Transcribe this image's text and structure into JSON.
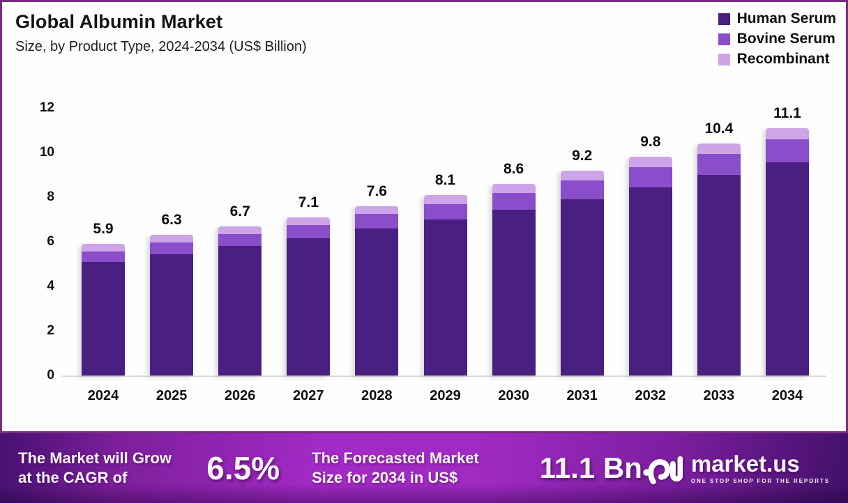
{
  "header": {
    "title": "Global Albumin Market",
    "subtitle": "Size, by Product Type, 2024-2034 (US$ Billion)"
  },
  "legend": [
    {
      "label": "Human Serum",
      "color": "#4a1f82"
    },
    {
      "label": "Bovine Serum",
      "color": "#8a4ecb"
    },
    {
      "label": "Recombinant",
      "color": "#cda4e8"
    }
  ],
  "chart_data": {
    "type": "bar",
    "stacked": true,
    "title": "Global Albumin Market",
    "subtitle": "Size, by Product Type, 2024-2034 (US$ Billion)",
    "xlabel": "",
    "ylabel": "",
    "ylim": [
      0,
      12
    ],
    "yticks": [
      0,
      2,
      4,
      6,
      8,
      10,
      12
    ],
    "grid": false,
    "legend_position": "top-right",
    "categories": [
      "2024",
      "2025",
      "2026",
      "2027",
      "2028",
      "2029",
      "2030",
      "2031",
      "2032",
      "2033",
      "2034"
    ],
    "series": [
      {
        "name": "Human Serum",
        "color": "#4a1f82",
        "values": [
          5.1,
          5.45,
          5.8,
          6.15,
          6.6,
          7.0,
          7.45,
          7.9,
          8.45,
          9.0,
          9.55
        ]
      },
      {
        "name": "Bovine Serum",
        "color": "#8a4ecb",
        "values": [
          0.45,
          0.52,
          0.55,
          0.6,
          0.65,
          0.7,
          0.75,
          0.85,
          0.9,
          0.95,
          1.05
        ]
      },
      {
        "name": "Recombinant",
        "color": "#cda4e8",
        "values": [
          0.35,
          0.33,
          0.35,
          0.35,
          0.35,
          0.4,
          0.4,
          0.45,
          0.45,
          0.45,
          0.5
        ]
      }
    ],
    "totals": [
      5.9,
      6.3,
      6.7,
      7.1,
      7.6,
      8.1,
      8.6,
      9.2,
      9.8,
      10.4,
      11.1
    ],
    "total_labels": [
      "5.9",
      "6.3",
      "6.7",
      "7.1",
      "7.6",
      "8.1",
      "8.6",
      "9.2",
      "9.8",
      "10.4",
      "11.1"
    ]
  },
  "banner": {
    "cagr_label_line1": "The Market will Grow",
    "cagr_label_line2": "at the CAGR of",
    "cagr_value": "6.5%",
    "forecast_label_line1": "The Forecasted Market",
    "forecast_label_line2": "Size for 2034 in US$",
    "forecast_value": "11.1 Bn",
    "brand": {
      "name": "market.us",
      "tagline": "ONE STOP SHOP FOR THE REPORTS"
    }
  },
  "colors": {
    "card_border": "#772d80",
    "banner_bright": "#a32ac6",
    "banner_dark": "#421068",
    "axis_line": "#dadada",
    "text": "#0f0f0f"
  }
}
